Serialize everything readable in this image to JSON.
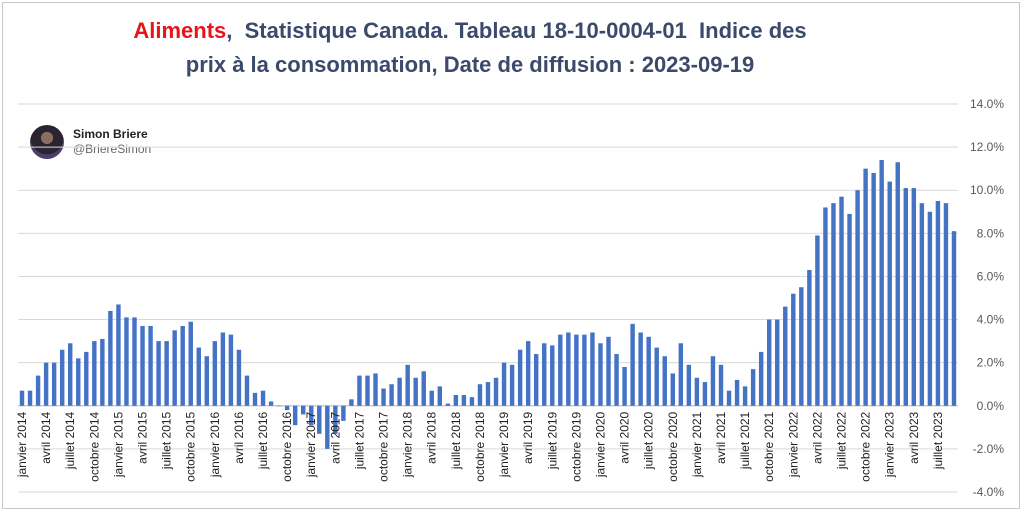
{
  "title": {
    "accent": "Aliments",
    "rest": ",  Statistique Canada. Tableau 18-10-0004-01  Indice des",
    "line2": "prix à la consommation, Date de diffusion : 2023-09-19"
  },
  "credit": {
    "name": "Simon Briere",
    "handle": "@BriereSimon",
    "avatar_icon": "profile-photo-icon"
  },
  "colors": {
    "accent": "#e8141c",
    "title": "#3b4a6b",
    "bar": "#4472c4",
    "grid": "#d9d9d9",
    "axis_text": "#595959"
  },
  "chart_data": {
    "type": "bar",
    "title": "Aliments,  Statistique Canada. Tableau 18-10-0004-01  Indice des prix à la consommation, Date de diffusion : 2023-09-19",
    "xlabel": "",
    "ylabel": "",
    "ylim": [
      -4.0,
      14.0
    ],
    "y_ticks": [
      "-4.0%",
      "-2.0%",
      "0.0%",
      "2.0%",
      "4.0%",
      "6.0%",
      "8.0%",
      "10.0%",
      "12.0%",
      "14.0%"
    ],
    "y_axis_side": "right",
    "grid": true,
    "legend": "none",
    "start_period": "janvier 2014",
    "x_tick_labels": [
      "janvier 2014",
      "avril 2014",
      "juillet 2014",
      "octobre 2014",
      "janvier 2015",
      "avril 2015",
      "juillet 2015",
      "octobre 2015",
      "janvier 2016",
      "avril 2016",
      "juillet 2016",
      "octobre 2016",
      "janvier 2017",
      "avril 2017",
      "juillet 2017",
      "octobre 2017",
      "janvier 2018",
      "avril 2018",
      "juillet 2018",
      "octobre 2018",
      "janvier 2019",
      "avril 2019",
      "juillet 2019",
      "octobre 2019",
      "janvier 2020",
      "avril 2020",
      "juillet 2020",
      "octobre 2020",
      "janvier 2021",
      "avril 2021",
      "juillet 2021",
      "octobre 2021",
      "janvier 2022",
      "avril 2022",
      "juillet 2022",
      "octobre 2022",
      "janvier 2023",
      "avril 2023",
      "juillet 2023"
    ],
    "values": [
      0.7,
      0.7,
      1.4,
      2.0,
      2.0,
      2.6,
      2.9,
      2.2,
      2.5,
      3.0,
      3.1,
      4.4,
      4.7,
      4.1,
      4.1,
      3.7,
      3.7,
      3.0,
      3.0,
      3.5,
      3.7,
      3.9,
      2.7,
      2.3,
      3.0,
      3.4,
      3.3,
      2.6,
      1.4,
      0.6,
      0.7,
      0.2,
      0.0,
      -0.2,
      -0.9,
      -0.4,
      -0.9,
      -1.3,
      -2.0,
      -1.3,
      -0.7,
      0.3,
      1.4,
      1.4,
      1.5,
      0.8,
      1.0,
      1.3,
      1.9,
      1.3,
      1.6,
      0.7,
      0.9,
      0.1,
      0.5,
      0.5,
      0.4,
      1.0,
      1.1,
      1.3,
      2.0,
      1.9,
      2.6,
      3.0,
      2.4,
      2.9,
      2.8,
      3.3,
      3.4,
      3.3,
      3.3,
      3.4,
      2.9,
      3.2,
      2.4,
      1.8,
      3.8,
      3.4,
      3.2,
      2.7,
      2.3,
      1.5,
      2.9,
      1.9,
      1.3,
      1.1,
      2.3,
      1.9,
      0.7,
      1.2,
      0.9,
      1.7,
      2.5,
      4.0,
      4.0,
      4.6,
      5.2,
      5.5,
      6.3,
      7.9,
      9.2,
      9.4,
      9.7,
      8.9,
      10.0,
      11.0,
      10.8,
      11.4,
      10.4,
      11.3,
      10.1,
      10.1,
      9.4,
      9.0,
      9.5,
      9.4,
      8.1
    ]
  }
}
